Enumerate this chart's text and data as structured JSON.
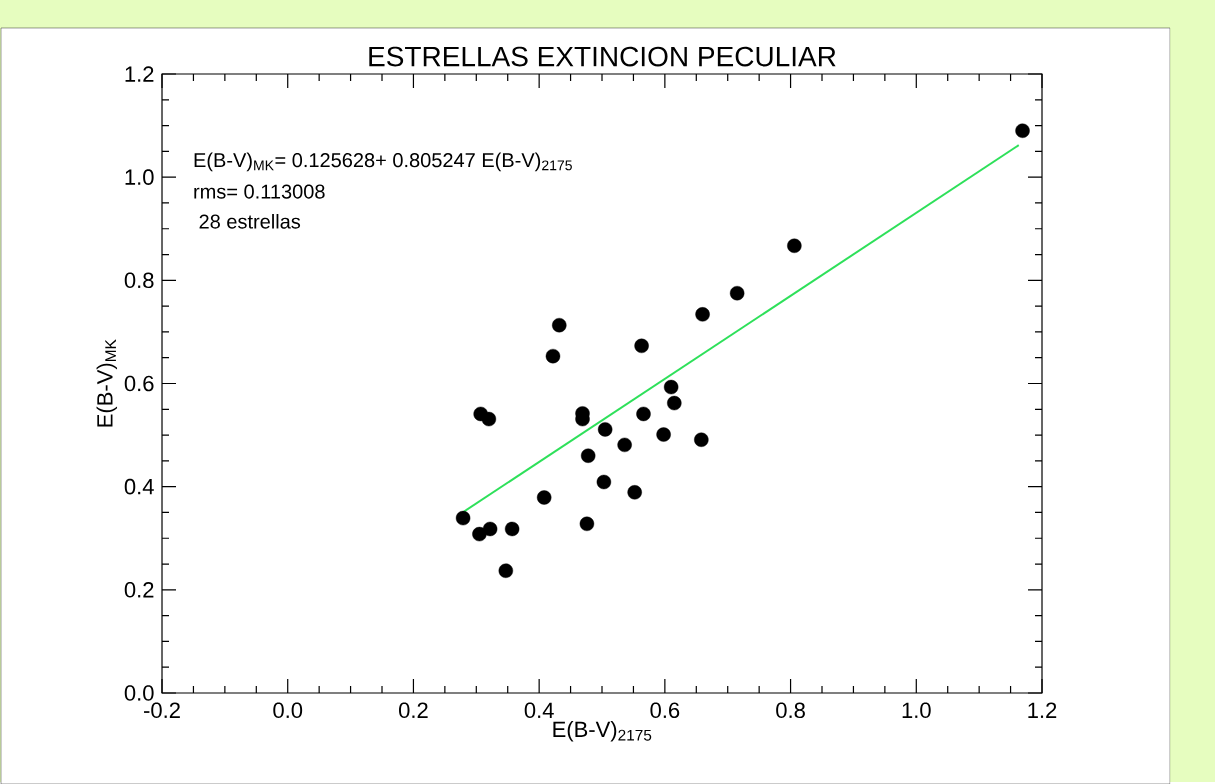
{
  "chart_data": {
    "type": "scatter",
    "title": "ESTRELLAS EXTINCION PECULIAR",
    "xlabel": "E(B-V)$_{2175}$",
    "ylabel": "E(B-V)$_{MK}$",
    "annotations": [
      "E(B-V)$_{MK}$= 0.125628+ 0.805247 E(B-V)$_{2175}$",
      "rms= 0.113008",
      " 28 estrellas"
    ],
    "series": [
      {
        "type": "scatter",
        "color": "#000000",
        "x": [
          0.279,
          0.305,
          0.322,
          0.357,
          0.347,
          0.307,
          0.32,
          0.432,
          0.422,
          0.408,
          0.469,
          0.469,
          0.478,
          0.476,
          0.505,
          0.503,
          0.536,
          0.552,
          0.563,
          0.566,
          0.598,
          0.61,
          0.615,
          0.658,
          0.66,
          0.715,
          0.806,
          1.169
        ],
        "values": [
          0.339,
          0.308,
          0.318,
          0.318,
          0.237,
          0.541,
          0.531,
          0.713,
          0.653,
          0.379,
          0.542,
          0.531,
          0.46,
          0.328,
          0.511,
          0.409,
          0.481,
          0.389,
          0.673,
          0.541,
          0.501,
          0.593,
          0.562,
          0.491,
          0.734,
          0.775,
          0.867,
          1.09
        ]
      },
      {
        "type": "line",
        "marker": "none",
        "color": "#2ee05a",
        "x": [
          0.277,
          1.163
        ],
        "values": [
          0.349,
          1.062
        ]
      }
    ],
    "xlim": [
      -0.2,
      1.2
    ],
    "ylim": [
      0,
      1.2
    ],
    "xticks": [
      -0.2,
      {
        "value": 0,
        "label": "0.0"
      },
      0.2,
      0.4,
      0.6,
      0.8,
      {
        "value": 1,
        "label": "1.0"
      },
      1.2
    ],
    "yticks": [
      {
        "value": 0,
        "label": "0.0"
      },
      0.2,
      0.4,
      0.6,
      0.8,
      {
        "value": 1,
        "label": "1.0"
      },
      1.2
    ],
    "marker": "circle",
    "grid": false
  }
}
